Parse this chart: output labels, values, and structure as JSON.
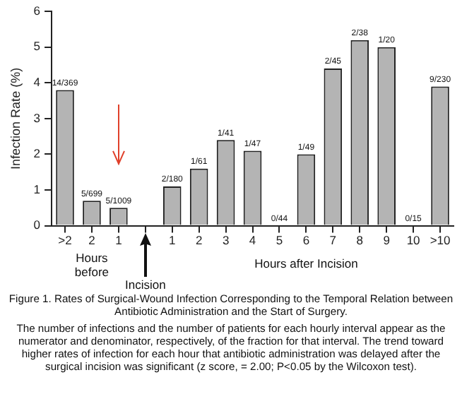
{
  "chart_data": {
    "type": "bar",
    "title": "Figure 1. Rates of Surgical-Wound Infection Corresponding to the Temporal Relation between Antibiotic Administration and the Start of Surgery.",
    "ylabel": "Infection Rate (%)",
    "categories": [
      ">2",
      "2",
      "1",
      null,
      "1",
      "2",
      "3",
      "4",
      "5",
      "6",
      "7",
      "8",
      "9",
      "10",
      ">10"
    ],
    "values": [
      3.8,
      0.7,
      0.5,
      null,
      1.1,
      1.6,
      2.4,
      2.1,
      0,
      2.0,
      4.4,
      5.2,
      5.0,
      0,
      3.9
    ],
    "value_labels": [
      "14/369",
      "5/699",
      "5/1009",
      null,
      "2/180",
      "1/61",
      "1/41",
      "1/47",
      "0/44",
      "1/49",
      "2/45",
      "2/38",
      "1/20",
      "0/15",
      "9/230"
    ],
    "color": "#b4b4b4",
    "ylim": [
      0,
      6
    ],
    "yticks": [
      0,
      1,
      2,
      3,
      4,
      5,
      6
    ],
    "grid": false,
    "legend": false,
    "annotations": [
      "Hours before",
      "Incision",
      "Hours after Incision",
      "The number of infections and the number of patients for each hourly interval appear as the numerator and denominator, respectively, of the fraction for that interval. The trend toward higher rates of infection for each hour that antibiotic administration was delayed after the surgical incision was significant (z score, = 2.00; P<0.05 by the Wilcoxon test)."
    ]
  }
}
